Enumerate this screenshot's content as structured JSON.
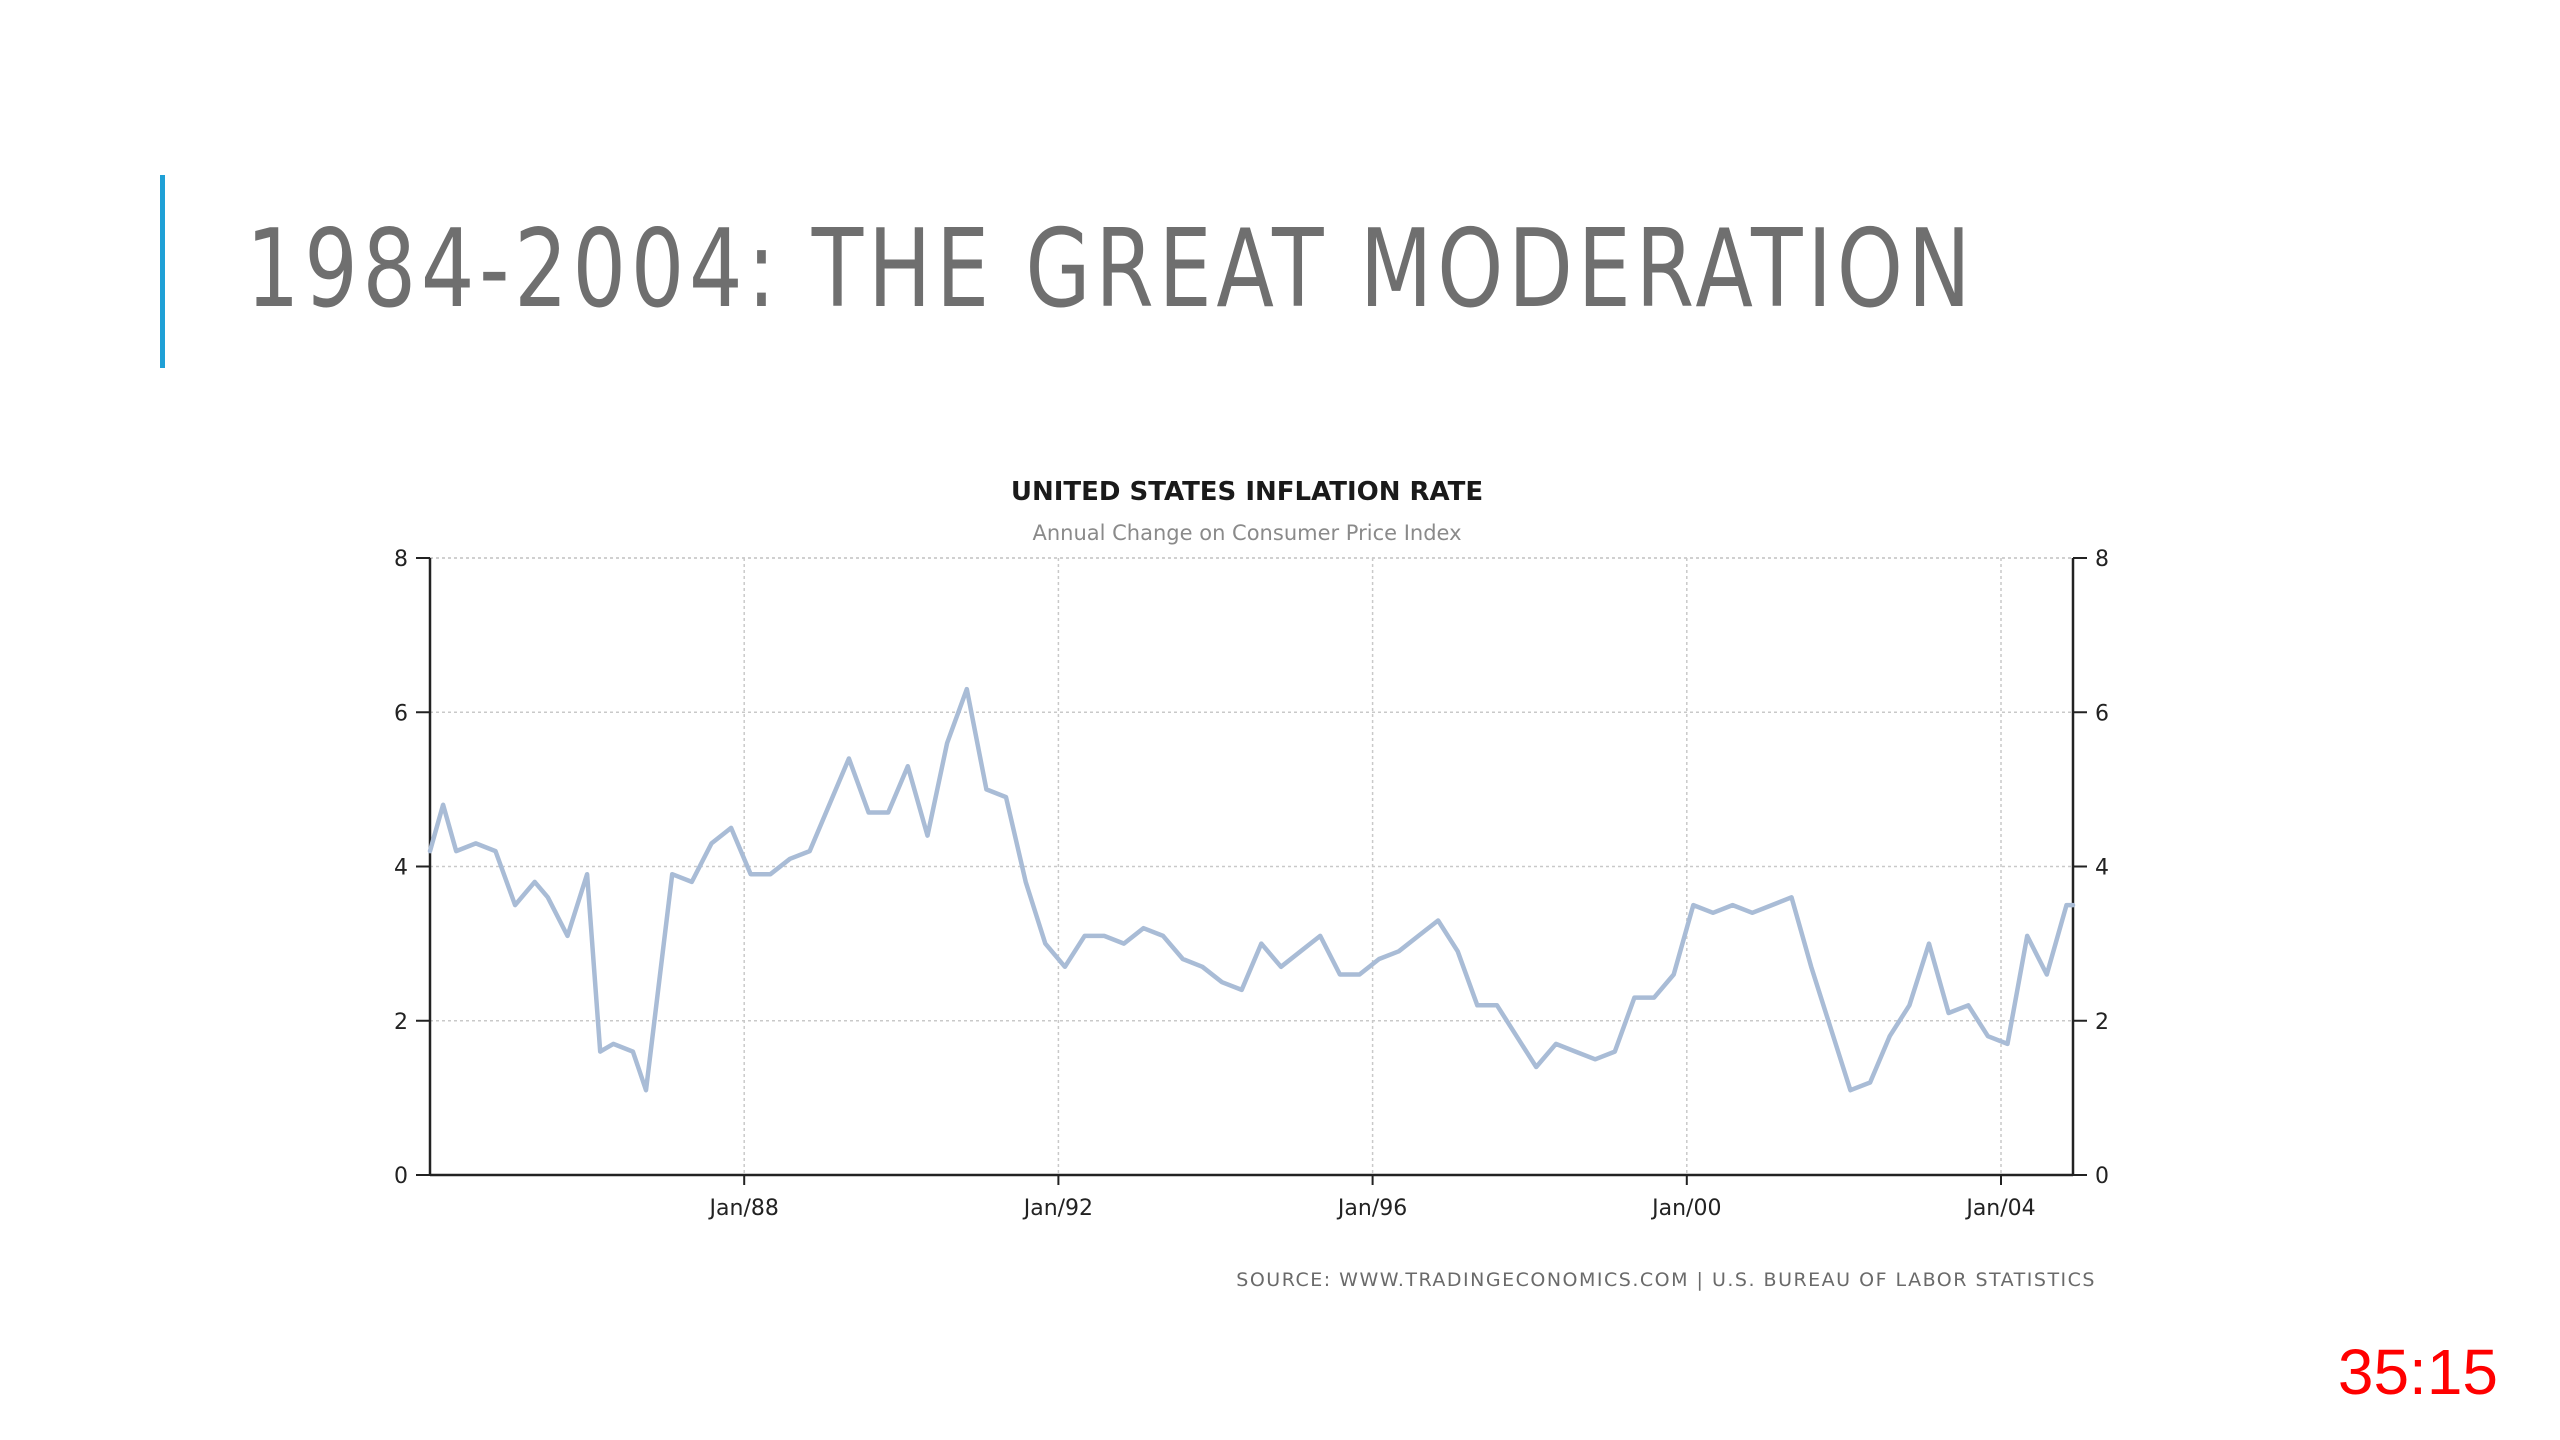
{
  "slide": {
    "title": "1984-2004: THE GREAT MODERATION",
    "accent_color": "#1fa0d6"
  },
  "timer": "35:15",
  "chart_data": {
    "type": "line",
    "title": "UNITED STATES INFLATION RATE",
    "subtitle": "Annual Change on Consumer Price Index",
    "source": "SOURCE:  WWW.TRADINGECONOMICS.COM  |  U.S.  BUREAU  OF  LABOR  STATISTICS",
    "xlim": [
      "1984-01",
      "2004-12"
    ],
    "ylim": [
      0,
      8
    ],
    "yticks": [
      0,
      2,
      4,
      6,
      8
    ],
    "xticks": [
      {
        "date": "1988-01",
        "label": "Jan/88"
      },
      {
        "date": "1992-01",
        "label": "Jan/92"
      },
      {
        "date": "1996-01",
        "label": "Jan/96"
      },
      {
        "date": "2000-01",
        "label": "Jan/00"
      },
      {
        "date": "2004-01",
        "label": "Jan/04"
      }
    ],
    "grid": true,
    "right_axis": true,
    "line_color": "#a9bcd6",
    "series": [
      {
        "x": [
          "1984-01",
          "1984-03",
          "1984-05",
          "1984-08",
          "1984-11",
          "1985-02",
          "1985-05",
          "1985-07",
          "1985-10",
          "1986-01",
          "1986-03",
          "1986-05",
          "1986-08",
          "1986-10",
          "1986-12",
          "1987-02",
          "1987-05",
          "1987-08",
          "1987-11",
          "1988-02",
          "1988-05",
          "1988-08",
          "1988-11",
          "1989-02",
          "1989-05",
          "1989-08",
          "1989-11",
          "1990-02",
          "1990-05",
          "1990-08",
          "1990-11",
          "1991-02",
          "1991-05",
          "1991-08",
          "1991-11",
          "1992-02",
          "1992-05",
          "1992-08",
          "1992-11",
          "1993-02",
          "1993-05",
          "1993-08",
          "1993-11",
          "1994-02",
          "1994-05",
          "1994-08",
          "1994-11",
          "1995-02",
          "1995-05",
          "1995-08",
          "1995-11",
          "1996-02",
          "1996-05",
          "1996-08",
          "1996-11",
          "1997-02",
          "1997-05",
          "1997-08",
          "1997-11",
          "1998-02",
          "1998-05",
          "1998-08",
          "1998-11",
          "1999-02",
          "1999-05",
          "1999-08",
          "1999-11",
          "2000-02",
          "2000-05",
          "2000-08",
          "2000-11",
          "2001-02",
          "2001-05",
          "2001-08",
          "2001-11",
          "2002-02",
          "2002-05",
          "2002-08",
          "2002-11",
          "2003-02",
          "2003-05",
          "2003-08",
          "2003-11",
          "2004-02",
          "2004-05",
          "2004-08",
          "2004-11",
          "2004-12"
        ],
        "y": [
          4.2,
          4.8,
          4.2,
          4.3,
          4.2,
          3.5,
          3.8,
          3.6,
          3.1,
          3.9,
          1.6,
          1.7,
          1.6,
          1.1,
          2.5,
          3.9,
          3.8,
          4.3,
          4.5,
          3.9,
          3.9,
          4.1,
          4.2,
          4.8,
          5.4,
          4.7,
          4.7,
          5.3,
          4.4,
          5.6,
          6.3,
          5.0,
          4.9,
          3.8,
          3.0,
          2.7,
          3.1,
          3.1,
          3.0,
          3.2,
          3.1,
          2.8,
          2.7,
          2.5,
          2.4,
          3.0,
          2.7,
          2.9,
          3.1,
          2.6,
          2.6,
          2.8,
          2.9,
          3.1,
          3.3,
          2.9,
          2.2,
          2.2,
          1.8,
          1.4,
          1.7,
          1.6,
          1.5,
          1.6,
          2.3,
          2.3,
          2.6,
          3.5,
          3.4,
          3.5,
          3.4,
          3.5,
          3.6,
          2.7,
          1.9,
          1.1,
          1.2,
          1.8,
          2.2,
          3.0,
          2.1,
          2.2,
          1.8,
          1.7,
          3.1,
          2.6,
          3.5,
          3.5
        ]
      }
    ]
  }
}
